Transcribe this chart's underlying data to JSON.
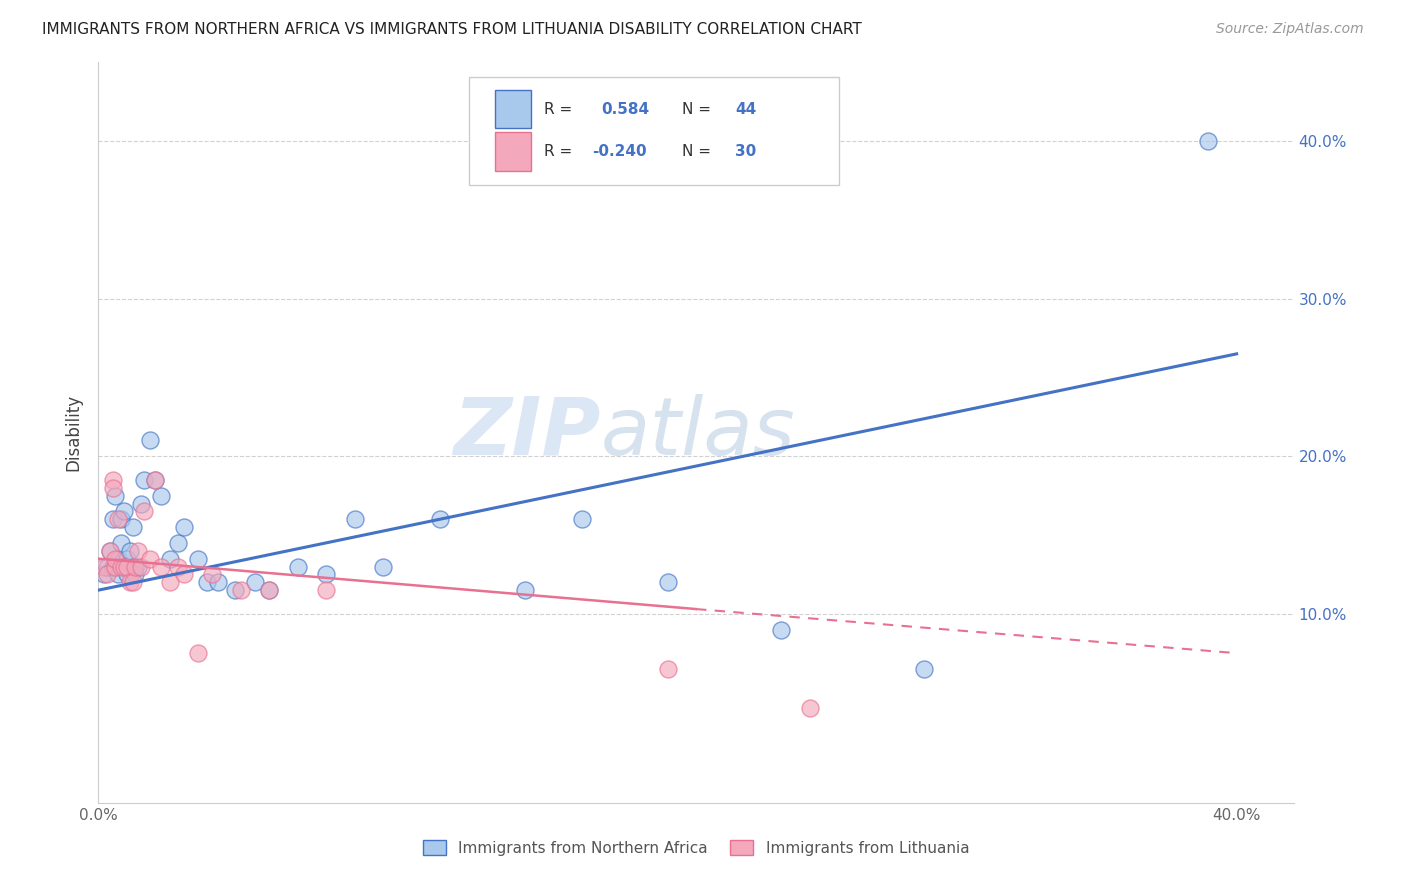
{
  "title": "IMMIGRANTS FROM NORTHERN AFRICA VS IMMIGRANTS FROM LITHUANIA DISABILITY CORRELATION CHART",
  "source": "Source: ZipAtlas.com",
  "ylabel": "Disability",
  "xlim": [
    0.0,
    0.42
  ],
  "ylim": [
    -0.02,
    0.45
  ],
  "ytick_right_labels": [
    "10.0%",
    "20.0%",
    "30.0%",
    "40.0%"
  ],
  "ytick_right_vals": [
    0.1,
    0.2,
    0.3,
    0.4
  ],
  "xtick_labels": [
    "0.0%",
    "",
    "",
    "",
    "40.0%"
  ],
  "xtick_vals": [
    0.0,
    0.1,
    0.2,
    0.3,
    0.4
  ],
  "legend_labels": [
    "Immigrants from Northern Africa",
    "Immigrants from Lithuania"
  ],
  "legend_R": [
    0.584,
    -0.24
  ],
  "legend_N": [
    44,
    30
  ],
  "blue_color": "#A8C8EC",
  "pink_color": "#F4A8BC",
  "blue_line_color": "#4472C4",
  "pink_line_color": "#E87090",
  "watermark_zip": "ZIP",
  "watermark_atlas": "atlas",
  "blue_scatter_x": [
    0.002,
    0.003,
    0.004,
    0.005,
    0.005,
    0.006,
    0.006,
    0.007,
    0.007,
    0.008,
    0.008,
    0.009,
    0.01,
    0.01,
    0.011,
    0.012,
    0.012,
    0.013,
    0.014,
    0.015,
    0.016,
    0.018,
    0.02,
    0.022,
    0.025,
    0.028,
    0.03,
    0.035,
    0.038,
    0.042,
    0.048,
    0.055,
    0.06,
    0.07,
    0.08,
    0.09,
    0.1,
    0.12,
    0.15,
    0.17,
    0.2,
    0.24,
    0.29,
    0.39
  ],
  "blue_scatter_y": [
    0.125,
    0.13,
    0.14,
    0.13,
    0.16,
    0.13,
    0.175,
    0.135,
    0.125,
    0.16,
    0.145,
    0.165,
    0.135,
    0.125,
    0.14,
    0.13,
    0.155,
    0.125,
    0.13,
    0.17,
    0.185,
    0.21,
    0.185,
    0.175,
    0.135,
    0.145,
    0.155,
    0.135,
    0.12,
    0.12,
    0.115,
    0.12,
    0.115,
    0.13,
    0.125,
    0.16,
    0.13,
    0.16,
    0.115,
    0.16,
    0.12,
    0.09,
    0.065,
    0.4
  ],
  "pink_scatter_x": [
    0.002,
    0.003,
    0.004,
    0.005,
    0.005,
    0.006,
    0.006,
    0.007,
    0.008,
    0.009,
    0.01,
    0.011,
    0.012,
    0.013,
    0.014,
    0.015,
    0.016,
    0.018,
    0.02,
    0.022,
    0.025,
    0.028,
    0.03,
    0.035,
    0.04,
    0.05,
    0.06,
    0.08,
    0.2,
    0.25
  ],
  "pink_scatter_y": [
    0.13,
    0.125,
    0.14,
    0.185,
    0.18,
    0.13,
    0.135,
    0.16,
    0.13,
    0.13,
    0.13,
    0.12,
    0.12,
    0.13,
    0.14,
    0.13,
    0.165,
    0.135,
    0.185,
    0.13,
    0.12,
    0.13,
    0.125,
    0.075,
    0.125,
    0.115,
    0.115,
    0.115,
    0.065,
    0.04
  ],
  "blue_line_x0": 0.0,
  "blue_line_y0": 0.115,
  "blue_line_x1": 0.4,
  "blue_line_y1": 0.265,
  "pink_line_solid_x0": 0.0,
  "pink_line_solid_y0": 0.135,
  "pink_line_solid_x1": 0.21,
  "pink_line_solid_y1": 0.103,
  "pink_line_dash_x0": 0.21,
  "pink_line_dash_y0": 0.103,
  "pink_line_dash_x1": 0.4,
  "pink_line_dash_y1": 0.075
}
